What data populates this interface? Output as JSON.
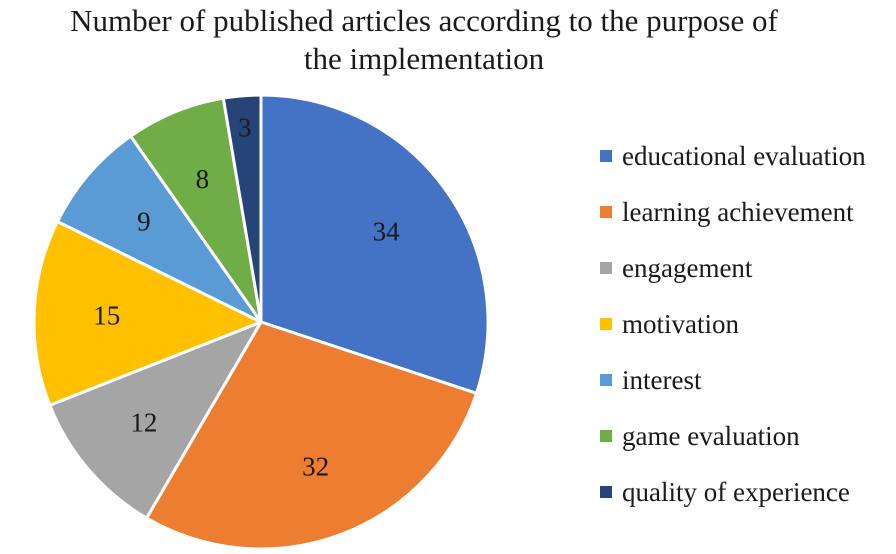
{
  "chart_data": {
    "type": "pie",
    "title": "Number of published articles according to the purpose of the implementation",
    "title_lines": [
      "Number of published articles according to the purpose of",
      "the implementation"
    ],
    "legend_position": "right",
    "slices": [
      {
        "label": "educational evaluation",
        "value": 34,
        "color": "#4472C4"
      },
      {
        "label": "learning achievement",
        "value": 32,
        "color": "#ED7D31"
      },
      {
        "label": "engagement",
        "value": 12,
        "color": "#A5A5A5"
      },
      {
        "label": "motivation",
        "value": 15,
        "color": "#FFC000"
      },
      {
        "label": "interest",
        "value": 9,
        "color": "#5B9BD5"
      },
      {
        "label": "game evaluation",
        "value": 8,
        "color": "#70AD47"
      },
      {
        "label": "quality of experience",
        "value": 3,
        "color": "#264478"
      }
    ]
  }
}
